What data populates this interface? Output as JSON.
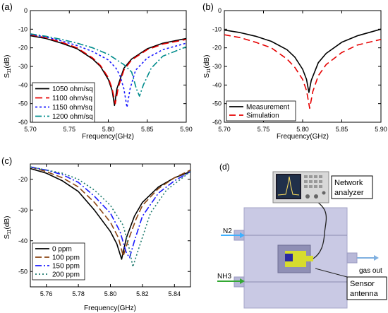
{
  "chart_data": [
    {
      "panel": "(a)",
      "type": "line",
      "xlabel": "Frequency(GHz)",
      "ylabel": "S11(dB)",
      "xlim": [
        5.7,
        5.9
      ],
      "ylim": [
        -60,
        0
      ],
      "xticks": [
        "5.70",
        "5.75",
        "5.80",
        "5.85",
        "5.90"
      ],
      "yticks": [
        "0",
        "-10",
        "-20",
        "-30",
        "-40",
        "-50",
        "-60"
      ],
      "legend_position": "bottom-left",
      "series": [
        {
          "name": "1050 ohm/sq",
          "color": "#000000",
          "dash": "solid",
          "x": [
            5.7,
            5.72,
            5.74,
            5.76,
            5.78,
            5.79,
            5.8,
            5.805,
            5.808,
            5.811,
            5.82,
            5.83,
            5.85,
            5.87,
            5.9
          ],
          "values": [
            -13.5,
            -15.0,
            -17.5,
            -20.5,
            -26.0,
            -30.0,
            -37.0,
            -43.0,
            -51.0,
            -42.0,
            -31.0,
            -26.0,
            -20.5,
            -17.5,
            -15.0
          ]
        },
        {
          "name": "1100 ohm/sq",
          "color": "#e60000",
          "dash": "10,5",
          "x": [
            5.7,
            5.72,
            5.74,
            5.76,
            5.78,
            5.79,
            5.8,
            5.805,
            5.809,
            5.813,
            5.82,
            5.83,
            5.85,
            5.87,
            5.9
          ],
          "values": [
            -13.0,
            -14.6,
            -17.0,
            -20.0,
            -25.5,
            -29.5,
            -36.0,
            -42.0,
            -50.0,
            -41.0,
            -32.0,
            -26.5,
            -21.0,
            -18.0,
            -15.5
          ]
        },
        {
          "name": "1150 ohm/sq",
          "color": "#1a1aff",
          "dash": "3,3",
          "x": [
            5.7,
            5.72,
            5.74,
            5.76,
            5.78,
            5.8,
            5.81,
            5.815,
            5.82,
            5.824,
            5.828,
            5.835,
            5.85,
            5.87,
            5.9
          ],
          "values": [
            -12.8,
            -14.2,
            -16.3,
            -18.8,
            -22.0,
            -26.5,
            -31.0,
            -35.0,
            -42.0,
            -52.0,
            -42.0,
            -32.0,
            -25.5,
            -21.0,
            -17.5
          ]
        },
        {
          "name": "1200 ohm/sq",
          "color": "#008c8c",
          "dash": "9,3,2,3",
          "x": [
            5.7,
            5.72,
            5.74,
            5.76,
            5.78,
            5.8,
            5.82,
            5.83,
            5.836,
            5.84,
            5.845,
            5.855,
            5.87,
            5.9
          ],
          "values": [
            -12.5,
            -13.8,
            -15.5,
            -17.5,
            -20.0,
            -23.5,
            -29.0,
            -33.0,
            -42.0,
            -46.0,
            -40.0,
            -31.0,
            -24.5,
            -19.5
          ]
        }
      ]
    },
    {
      "panel": "(b)",
      "type": "line",
      "xlabel": "Frequency(GHz)",
      "ylabel": "S11(dB)",
      "xlim": [
        5.7,
        5.9
      ],
      "ylim": [
        -60,
        0
      ],
      "xticks": [
        "5.70",
        "5.75",
        "5.80",
        "5.85",
        "5.90"
      ],
      "yticks": [
        "0",
        "-10",
        "-20",
        "-30",
        "-40",
        "-50",
        "-60"
      ],
      "legend_position": "bottom-left",
      "series": [
        {
          "name": "Measurement",
          "color": "#000000",
          "dash": "solid",
          "x": [
            5.7,
            5.72,
            5.74,
            5.76,
            5.78,
            5.79,
            5.8,
            5.805,
            5.808,
            5.811,
            5.82,
            5.83,
            5.85,
            5.87,
            5.9
          ],
          "values": [
            -10.5,
            -11.8,
            -13.8,
            -16.5,
            -21.0,
            -25.0,
            -31.5,
            -37.0,
            -44.0,
            -37.5,
            -28.0,
            -23.0,
            -17.0,
            -13.5,
            -10.0
          ]
        },
        {
          "name": "Simulation",
          "color": "#e60000",
          "dash": "9,5",
          "x": [
            5.7,
            5.72,
            5.74,
            5.76,
            5.78,
            5.79,
            5.8,
            5.805,
            5.809,
            5.813,
            5.82,
            5.83,
            5.85,
            5.87,
            5.9
          ],
          "values": [
            -13.0,
            -14.5,
            -17.0,
            -20.0,
            -26.0,
            -30.5,
            -37.0,
            -43.0,
            -52.5,
            -43.5,
            -35.0,
            -29.0,
            -22.5,
            -18.5,
            -15.5
          ]
        }
      ]
    },
    {
      "panel": "(c)",
      "type": "line",
      "xlabel": "Frequency(GHz)",
      "ylabel": "S11(dB)",
      "xlim": [
        5.75,
        5.85
      ],
      "ylim": [
        -55,
        -15
      ],
      "xticks": [
        "5.76",
        "5.78",
        "5.80",
        "5.82",
        "5.84"
      ],
      "yticks": [
        "-20",
        "-30",
        "-40",
        "-50"
      ],
      "legend_position": "bottom-left",
      "series": [
        {
          "name": "0 ppm",
          "color": "#000000",
          "dash": "solid",
          "x": [
            5.75,
            5.76,
            5.77,
            5.78,
            5.79,
            5.8,
            5.804,
            5.807,
            5.81,
            5.815,
            5.82,
            5.83,
            5.84,
            5.85
          ],
          "values": [
            -16.5,
            -18.0,
            -20.5,
            -24.0,
            -30.0,
            -37.0,
            -41.0,
            -46.0,
            -39.0,
            -32.0,
            -27.5,
            -22.5,
            -19.5,
            -17.5
          ]
        },
        {
          "name": "100 ppm",
          "color": "#8b4513",
          "dash": "9,4",
          "x": [
            5.75,
            5.76,
            5.77,
            5.78,
            5.79,
            5.8,
            5.805,
            5.808,
            5.811,
            5.816,
            5.82,
            5.83,
            5.84,
            5.85
          ],
          "values": [
            -16.0,
            -17.5,
            -19.5,
            -22.5,
            -27.5,
            -34.0,
            -39.0,
            -45.0,
            -40.0,
            -33.0,
            -28.5,
            -23.0,
            -19.5,
            -17.0
          ]
        },
        {
          "name": "150 ppm",
          "color": "#1a1aff",
          "dash": "9,3,2,3",
          "x": [
            5.75,
            5.76,
            5.77,
            5.78,
            5.79,
            5.8,
            5.806,
            5.81,
            5.812,
            5.815,
            5.82,
            5.83,
            5.84,
            5.85
          ],
          "values": [
            -16.0,
            -17.0,
            -18.5,
            -21.0,
            -25.5,
            -31.0,
            -37.0,
            -44.0,
            -45.5,
            -40.0,
            -32.0,
            -24.5,
            -20.5,
            -17.5
          ]
        },
        {
          "name": "200 ppm",
          "color": "#1f7a6e",
          "dash": "2,3",
          "x": [
            5.75,
            5.76,
            5.77,
            5.78,
            5.79,
            5.8,
            5.808,
            5.812,
            5.814,
            5.818,
            5.825,
            5.835,
            5.845,
            5.85
          ],
          "values": [
            -16.0,
            -17.0,
            -18.0,
            -20.0,
            -23.5,
            -28.5,
            -35.0,
            -43.0,
            -48.5,
            -42.0,
            -31.0,
            -23.5,
            -19.5,
            -17.5
          ]
        }
      ]
    }
  ],
  "panel_d": {
    "label": "(d)",
    "instrument_label_line1": "Network",
    "instrument_label_line2": "analyzer",
    "inlet_top": "N2",
    "inlet_bottom": "NH3",
    "outlet": "gas out",
    "sensor_label_line1": "Sensor",
    "sensor_label_line2": "antenna"
  },
  "colors": {
    "chamber": "#c9c9e4",
    "chamber_edge": "#a5a5c8",
    "substrate": "#8f8fb5",
    "patch": "#d7dc2e",
    "port": "#2a2aa0",
    "arrow_n2": "#3fb0ff",
    "arrow_nh3": "#33a833"
  }
}
